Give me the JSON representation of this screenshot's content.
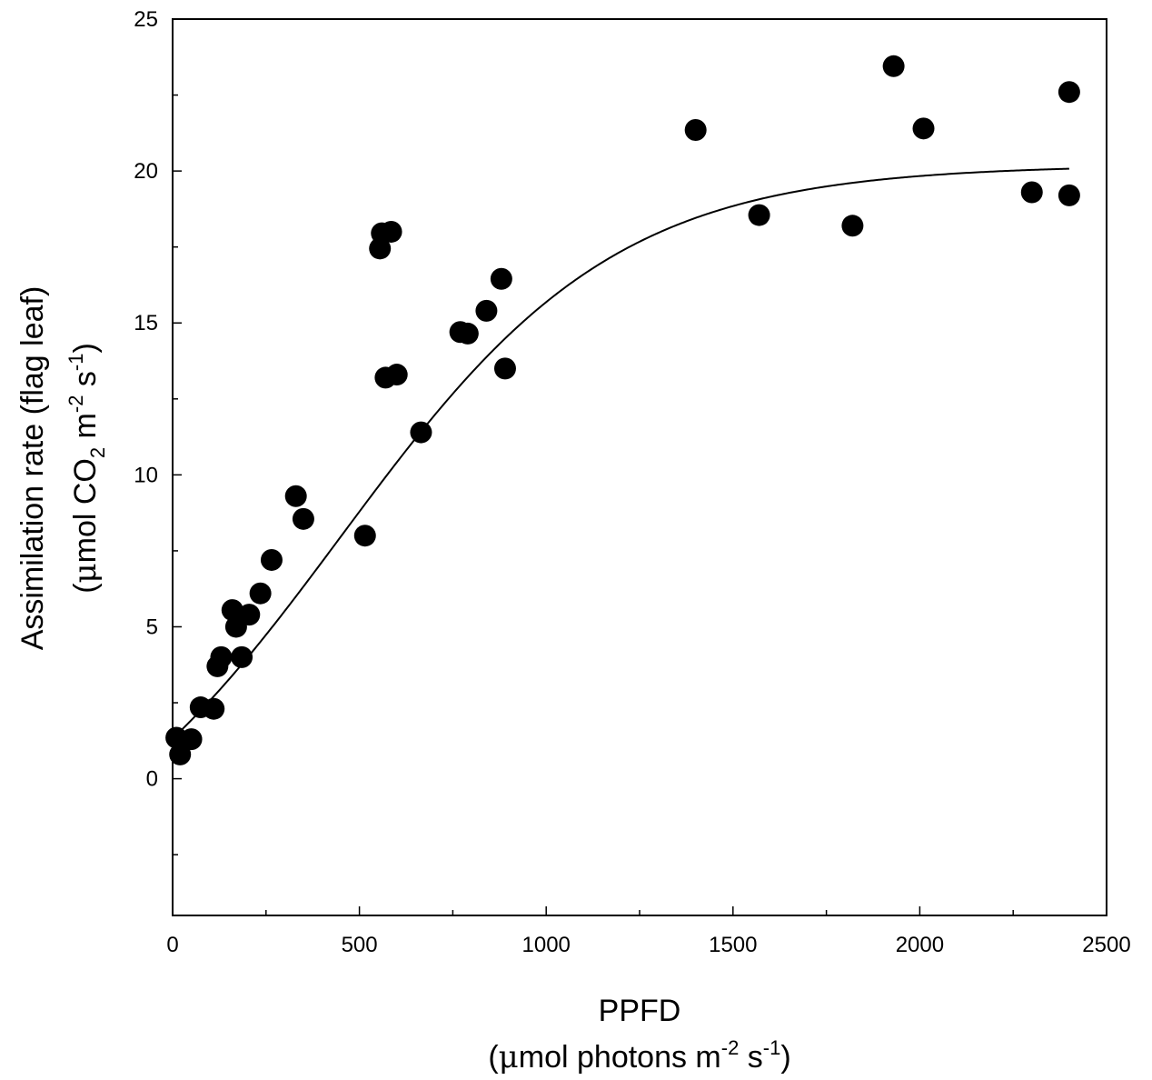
{
  "chart_data": {
    "type": "scatter",
    "x_axis": {
      "title_line1": "PPFD",
      "title_line2_prefix": "(",
      "title_line2_mu": "μ",
      "title_line2_main": "mol photons m",
      "title_line2_sup1": "-2",
      "title_line2_mid": " s",
      "title_line2_sup2": "-1",
      "title_line2_suffix": ")",
      "range": [
        0,
        2500
      ],
      "major_ticks": [
        0,
        500,
        1000,
        1500,
        2000,
        2500
      ],
      "tick_labels": [
        "0",
        "500",
        "1000",
        "1500",
        "2000",
        "2500"
      ],
      "minor_step": 250
    },
    "y_axis": {
      "title_line1": "Assimilation rate (flag leaf)",
      "title_line2_prefix": "(",
      "title_line2_mu": "μ",
      "title_line2_a": "mol CO",
      "title_line2_sub": "2",
      "title_line2_b": " m",
      "title_line2_sup1": "-2",
      "title_line2_c": " s",
      "title_line2_sup2": "-1",
      "title_line2_suffix": ")",
      "range": [
        -4.5,
        25
      ],
      "major_ticks": [
        0,
        5,
        10,
        15,
        20,
        25
      ],
      "tick_labels": [
        "0",
        "5",
        "10",
        "15",
        "20",
        "25"
      ],
      "minor_ticks": [
        -2.5,
        2.5,
        7.5,
        12.5,
        17.5,
        22.5
      ]
    },
    "series": [
      {
        "kind": "scatter",
        "points": [
          [
            10,
            1.35
          ],
          [
            20,
            0.8
          ],
          [
            50,
            1.3
          ],
          [
            75,
            2.35
          ],
          [
            110,
            2.3
          ],
          [
            120,
            3.7
          ],
          [
            130,
            4.0
          ],
          [
            160,
            5.55
          ],
          [
            170,
            5.0
          ],
          [
            185,
            4.0
          ],
          [
            205,
            5.4
          ],
          [
            235,
            6.1
          ],
          [
            265,
            7.2
          ],
          [
            330,
            9.3
          ],
          [
            350,
            8.55
          ],
          [
            515,
            8.0
          ],
          [
            555,
            17.45
          ],
          [
            560,
            17.95
          ],
          [
            570,
            13.2
          ],
          [
            585,
            18.0
          ],
          [
            600,
            13.3
          ],
          [
            665,
            11.4
          ],
          [
            770,
            14.7
          ],
          [
            790,
            14.65
          ],
          [
            840,
            15.4
          ],
          [
            880,
            16.45
          ],
          [
            890,
            13.5
          ],
          [
            1400,
            21.35
          ],
          [
            1570,
            18.55
          ],
          [
            1820,
            18.2
          ],
          [
            1930,
            23.45
          ],
          [
            2010,
            21.4
          ],
          [
            2300,
            19.3
          ],
          [
            2400,
            22.6
          ],
          [
            2400,
            19.2
          ]
        ]
      },
      {
        "kind": "fitted_curve",
        "x_start": 15,
        "x_end": 2400,
        "model": {
          "y0": 1.5,
          "amax": 20.2,
          "x0": 450,
          "width": 370
        }
      }
    ],
    "grid": false,
    "legend": "none",
    "colors": {
      "points": "#000000",
      "line": "#000000"
    }
  }
}
